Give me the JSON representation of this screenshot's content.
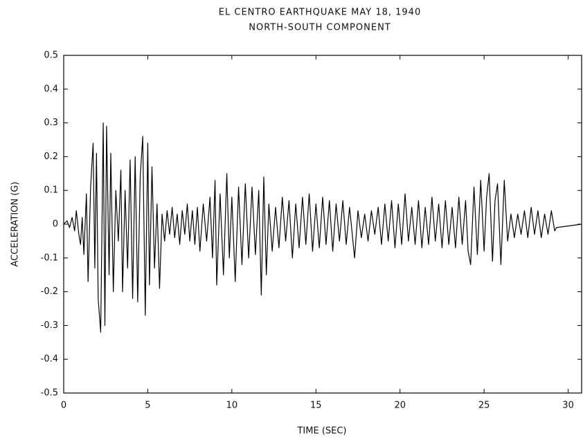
{
  "chart_data": {
    "type": "line",
    "title": "EL CENTRO EARTHQUAKE  MAY 18, 1940",
    "subtitle": "NORTH-SOUTH COMPONENT",
    "x_label": "TIME (SEC)",
    "y_label": "ACCELERATION (G)",
    "xlim": [
      0,
      30.8
    ],
    "ylim": [
      -0.5,
      0.5
    ],
    "xticks": [
      0,
      5,
      10,
      15,
      20,
      25,
      30
    ],
    "yticks": [
      0.5,
      0.4,
      0.3,
      0.2,
      0.1,
      0,
      -0.1,
      -0.2,
      -0.3,
      -0.4,
      -0.5
    ],
    "x": [
      0,
      0.2,
      0.35,
      0.5,
      0.65,
      0.75,
      0.9,
      1.0,
      1.1,
      1.2,
      1.35,
      1.45,
      1.6,
      1.75,
      1.85,
      1.95,
      2.05,
      2.2,
      2.35,
      2.45,
      2.55,
      2.7,
      2.8,
      2.95,
      3.1,
      3.25,
      3.4,
      3.5,
      3.65,
      3.8,
      3.95,
      4.1,
      4.25,
      4.4,
      4.55,
      4.7,
      4.85,
      5.0,
      5.1,
      5.25,
      5.4,
      5.55,
      5.7,
      5.85,
      6.0,
      6.15,
      6.3,
      6.45,
      6.6,
      6.75,
      6.9,
      7.05,
      7.2,
      7.35,
      7.5,
      7.65,
      7.8,
      7.95,
      8.1,
      8.3,
      8.5,
      8.7,
      8.85,
      9.0,
      9.1,
      9.3,
      9.5,
      9.7,
      9.85,
      10.0,
      10.2,
      10.4,
      10.6,
      10.8,
      11.0,
      11.2,
      11.4,
      11.6,
      11.75,
      11.9,
      12.05,
      12.2,
      12.4,
      12.6,
      12.8,
      13.0,
      13.2,
      13.4,
      13.6,
      13.8,
      14.0,
      14.2,
      14.4,
      14.6,
      14.8,
      15.0,
      15.2,
      15.4,
      15.6,
      15.8,
      16.0,
      16.2,
      16.4,
      16.6,
      16.8,
      17.0,
      17.3,
      17.5,
      17.7,
      17.9,
      18.1,
      18.3,
      18.5,
      18.7,
      18.9,
      19.1,
      19.3,
      19.5,
      19.7,
      19.9,
      20.1,
      20.3,
      20.5,
      20.7,
      20.9,
      21.1,
      21.3,
      21.5,
      21.7,
      21.9,
      22.1,
      22.3,
      22.5,
      22.7,
      22.9,
      23.1,
      23.3,
      23.5,
      23.7,
      23.9,
      24.05,
      24.2,
      24.4,
      24.6,
      24.8,
      25.0,
      25.15,
      25.3,
      25.5,
      25.65,
      25.8,
      26.0,
      26.2,
      26.4,
      26.6,
      26.8,
      27.0,
      27.2,
      27.4,
      27.6,
      27.8,
      28.0,
      28.2,
      28.4,
      28.6,
      28.8,
      29.0,
      29.2,
      29.3,
      30.8
    ],
    "series": [
      {
        "color": "#000000",
        "values": [
          0,
          0.01,
          -0.01,
          0.02,
          -0.02,
          0.04,
          -0.03,
          -0.06,
          0.02,
          -0.09,
          0.09,
          -0.17,
          0.11,
          0.24,
          -0.13,
          0.21,
          -0.22,
          -0.32,
          0.3,
          -0.3,
          0.29,
          -0.15,
          0.21,
          -0.2,
          0.1,
          -0.05,
          0.16,
          -0.2,
          0.1,
          -0.13,
          0.19,
          -0.22,
          0.2,
          -0.23,
          0.14,
          0.26,
          -0.27,
          0.24,
          -0.18,
          0.17,
          -0.13,
          0.06,
          -0.19,
          0.03,
          -0.05,
          0.04,
          -0.03,
          0.05,
          -0.04,
          0.03,
          -0.06,
          0.04,
          -0.03,
          0.06,
          -0.05,
          0.04,
          -0.06,
          0.05,
          -0.08,
          0.06,
          -0.05,
          0.08,
          -0.1,
          0.13,
          -0.18,
          0.09,
          -0.15,
          0.15,
          -0.1,
          0.08,
          -0.17,
          0.11,
          -0.12,
          0.12,
          -0.1,
          0.11,
          -0.09,
          0.1,
          -0.21,
          0.14,
          -0.15,
          0.06,
          -0.08,
          0.05,
          -0.07,
          0.08,
          -0.05,
          0.07,
          -0.1,
          0.06,
          -0.07,
          0.08,
          -0.06,
          0.09,
          -0.08,
          0.06,
          -0.07,
          0.08,
          -0.06,
          0.07,
          -0.08,
          0.06,
          -0.05,
          0.07,
          -0.06,
          0.05,
          -0.1,
          0.04,
          -0.04,
          0.03,
          -0.05,
          0.04,
          -0.03,
          0.05,
          -0.06,
          0.06,
          -0.05,
          0.07,
          -0.07,
          0.06,
          -0.06,
          0.09,
          -0.05,
          0.05,
          -0.06,
          0.07,
          -0.07,
          0.05,
          -0.06,
          0.08,
          -0.05,
          0.06,
          -0.07,
          0.07,
          -0.06,
          0.05,
          -0.07,
          0.08,
          -0.06,
          0.07,
          -0.08,
          -0.12,
          0.11,
          -0.09,
          0.13,
          -0.08,
          0.08,
          0.15,
          -0.11,
          0.07,
          0.12,
          -0.12,
          0.13,
          -0.05,
          0.03,
          -0.04,
          0.03,
          -0.03,
          0.04,
          -0.04,
          0.05,
          -0.03,
          0.04,
          -0.04,
          0.03,
          -0.03,
          0.04,
          -0.02,
          -0.01,
          0
        ]
      }
    ]
  }
}
